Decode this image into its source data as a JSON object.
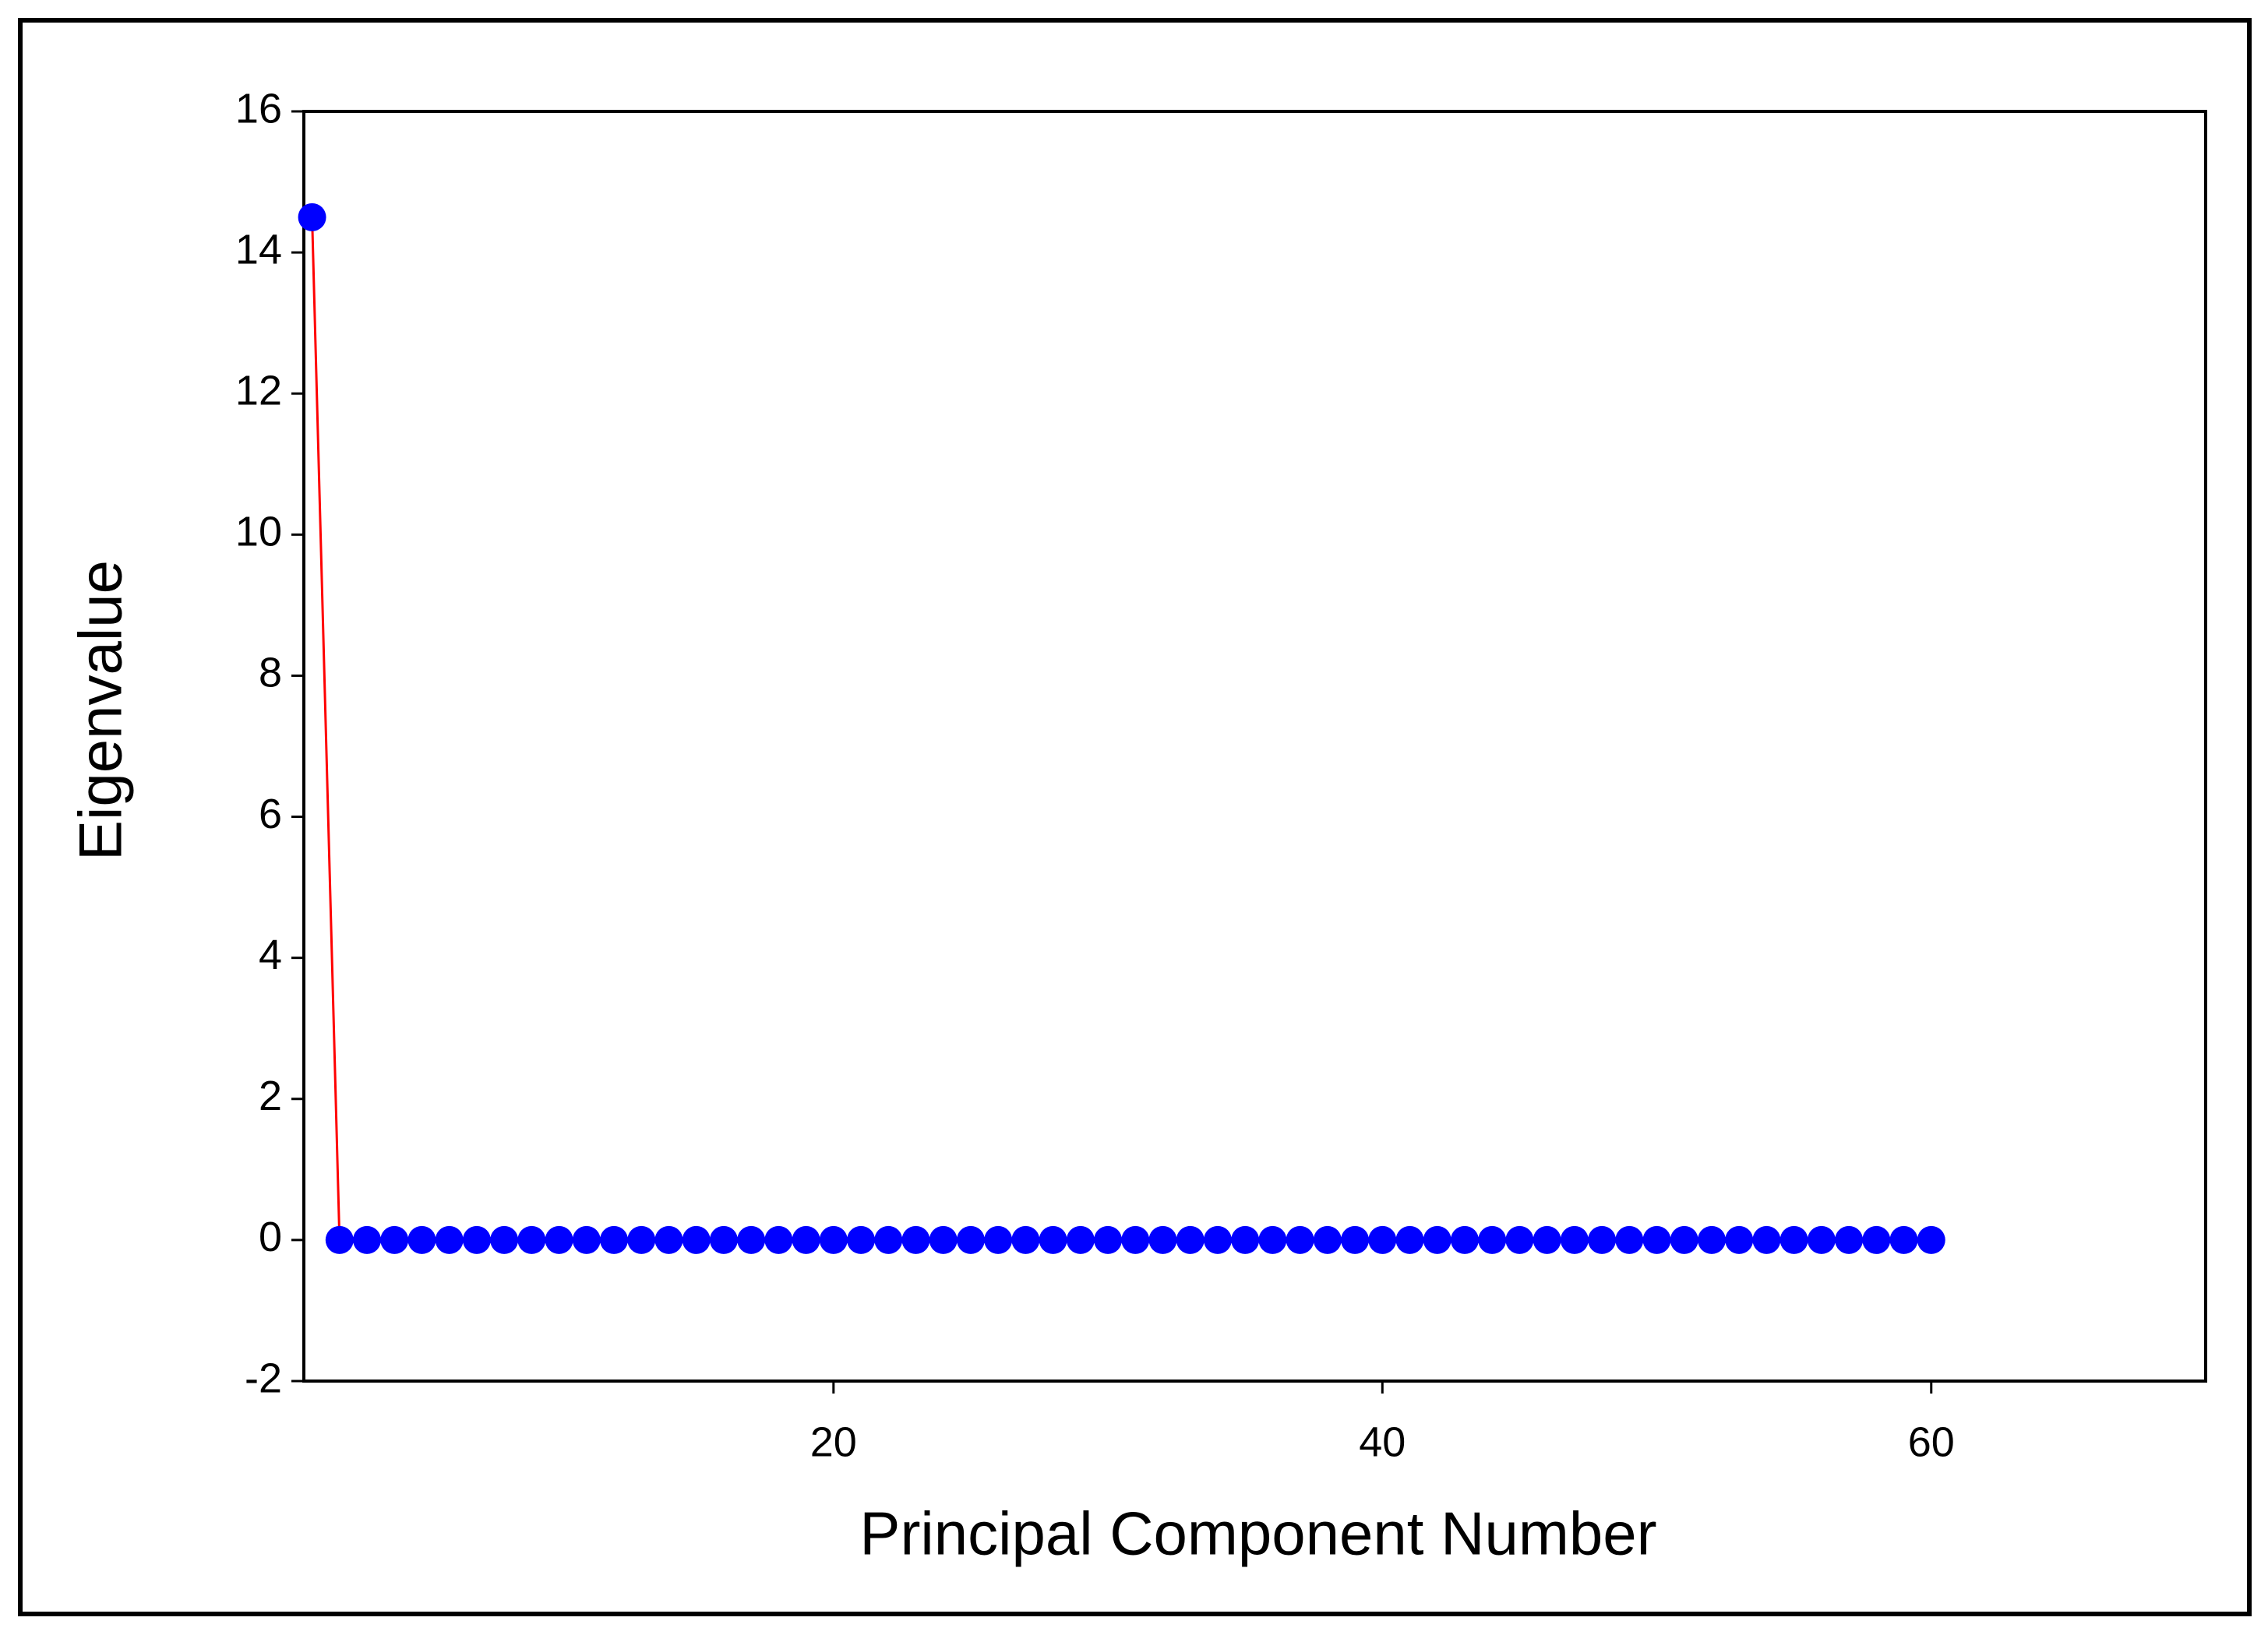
{
  "chart_data": {
    "type": "line",
    "x_label": "Principal Component Number",
    "y_label": "Eigenvalue",
    "x": [
      1,
      2,
      3,
      4,
      5,
      6,
      7,
      8,
      9,
      10,
      11,
      12,
      13,
      14,
      15,
      16,
      17,
      18,
      19,
      20,
      21,
      22,
      23,
      24,
      25,
      26,
      27,
      28,
      29,
      30,
      31,
      32,
      33,
      34,
      35,
      36,
      37,
      38,
      39,
      40,
      41,
      42,
      43,
      44,
      45,
      46,
      47,
      48,
      49,
      50,
      51,
      52,
      53,
      54,
      55,
      56,
      57,
      58,
      59,
      60
    ],
    "series": [
      {
        "name": "Eigenvalue",
        "color": "#0000ff",
        "line_color": "#ff0000",
        "values": [
          14.5,
          0,
          0,
          0,
          0,
          0,
          0,
          0,
          0,
          0,
          0,
          0,
          0,
          0,
          0,
          0,
          0,
          0,
          0,
          0,
          0,
          0,
          0,
          0,
          0,
          0,
          0,
          0,
          0,
          0,
          0,
          0,
          0,
          0,
          0,
          0,
          0,
          0,
          0,
          0,
          0,
          0,
          0,
          0,
          0,
          0,
          0,
          0,
          0,
          0,
          0,
          0,
          0,
          0,
          0,
          0,
          0,
          0,
          0,
          0
        ]
      }
    ],
    "xlim": [
      0.7,
      70
    ],
    "xticks": [
      20,
      40,
      60
    ],
    "ylim": [
      -2,
      16
    ],
    "yticks": [
      -2,
      0,
      2,
      4,
      6,
      8,
      10,
      12,
      14,
      16
    ]
  }
}
